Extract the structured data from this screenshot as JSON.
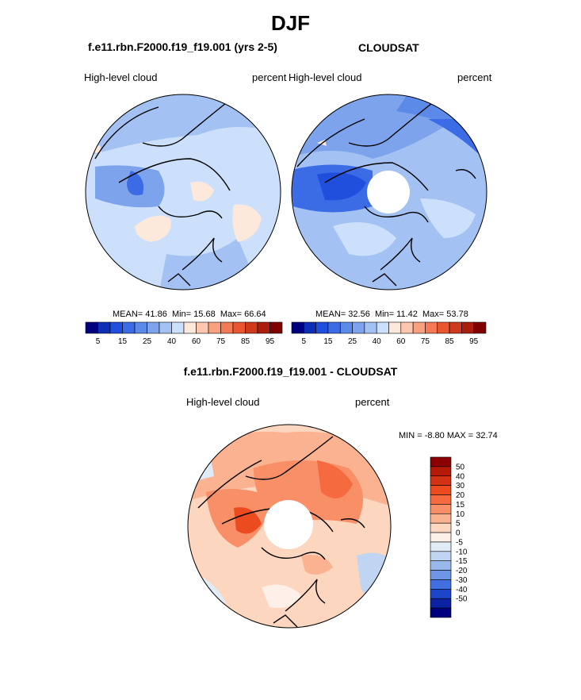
{
  "figure": {
    "season": "DJF"
  },
  "panels": [
    {
      "title": "f.e11.rbn.F2000.f19_f19.001 (yrs 2-5)",
      "left_label": "High-level cloud",
      "right_label": "percent",
      "stats": {
        "mean_label": "MEAN=",
        "mean": "41.86",
        "min_label": "Min=",
        "min": "15.68",
        "max_label": "Max=",
        "max": "66.64"
      }
    },
    {
      "title": "CLOUDSAT",
      "left_label": "High-level cloud",
      "right_label": "percent",
      "stats": {
        "mean_label": "MEAN=",
        "mean": "32.56",
        "min_label": "Min=",
        "min": "11.42",
        "max_label": "Max=",
        "max": "53.78"
      }
    },
    {
      "title": "f.e11.rbn.F2000.f19_f19.001 - CLOUDSAT",
      "left_label": "High-level cloud",
      "right_label": "percent",
      "stats": {
        "min_label": "MIN =",
        "min": "-8.80",
        "max_label": "MAX =",
        "max": "32.74"
      }
    }
  ],
  "chart_data": [
    {
      "type": "heatmap",
      "projection": "north-polar-stereographic",
      "title": "f.e11.rbn.F2000.f19_f19.001 (yrs 2-5)",
      "variable": "High-level cloud",
      "units": "percent",
      "mean": 41.86,
      "min": 15.68,
      "max": 66.64,
      "colorbar": {
        "orientation": "horizontal",
        "colors": [
          "#00007f",
          "#0d2fb5",
          "#1f4fdc",
          "#3b6ce6",
          "#5b8ae9",
          "#7da3ec",
          "#a4c1f3",
          "#cce0fb",
          "#fde8dc",
          "#fcc7ae",
          "#f8a07f",
          "#f47a55",
          "#ea5630",
          "#d03a1c",
          "#a91e0c",
          "#7f0000"
        ],
        "tick_labels": [
          "5",
          "15",
          "25",
          "40",
          "60",
          "75",
          "85",
          "95"
        ]
      },
      "hole": false
    },
    {
      "type": "heatmap",
      "projection": "north-polar-stereographic",
      "title": "CLOUDSAT",
      "variable": "High-level cloud",
      "units": "percent",
      "mean": 32.56,
      "min": 11.42,
      "max": 53.78,
      "colorbar": {
        "orientation": "horizontal",
        "colors": [
          "#00007f",
          "#0d2fb5",
          "#1f4fdc",
          "#3b6ce6",
          "#5b8ae9",
          "#7da3ec",
          "#a4c1f3",
          "#cce0fb",
          "#fde8dc",
          "#fcc7ae",
          "#f8a07f",
          "#f47a55",
          "#ea5630",
          "#d03a1c",
          "#a91e0c",
          "#7f0000"
        ],
        "tick_labels": [
          "5",
          "15",
          "25",
          "40",
          "60",
          "75",
          "85",
          "95"
        ]
      },
      "hole": true
    },
    {
      "type": "heatmap",
      "projection": "north-polar-stereographic",
      "title": "f.e11.rbn.F2000.f19_f19.001 - CLOUDSAT",
      "variable": "High-level cloud",
      "units": "percent",
      "min": -8.8,
      "max": 32.74,
      "colorbar": {
        "orientation": "vertical",
        "colors": [
          "#8b0000",
          "#b51a08",
          "#d43214",
          "#ec4a1f",
          "#f56a3f",
          "#f88f67",
          "#fab291",
          "#fdd6c0",
          "#fdf0e8",
          "#e0ebf8",
          "#c0d5f1",
          "#99b9ec",
          "#6f96e5",
          "#4270e0",
          "#1d45c8",
          "#0b22a3",
          "#00007f"
        ],
        "tick_labels": [
          "50",
          "40",
          "30",
          "20",
          "15",
          "10",
          "5",
          "0",
          "-5",
          "-10",
          "-15",
          "-20",
          "-30",
          "-40",
          "-50"
        ]
      },
      "hole": true
    }
  ]
}
